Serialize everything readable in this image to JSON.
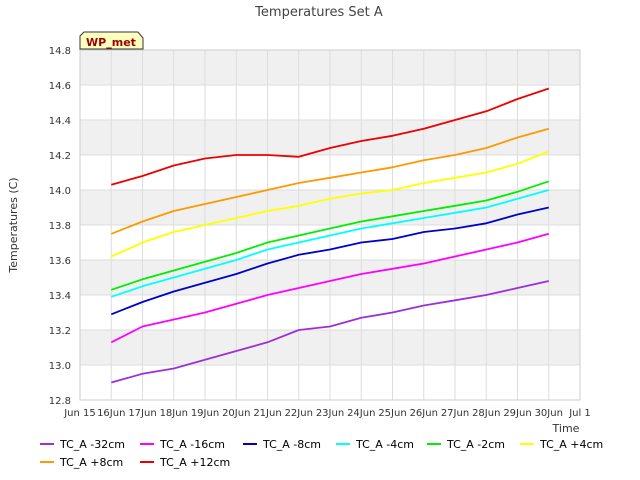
{
  "chart_data": {
    "type": "line",
    "title": "Temperatures Set A",
    "xlabel": "Time",
    "ylabel": "Temperatures (C)",
    "ylim": [
      12.8,
      14.8
    ],
    "yticks": [
      "12.8",
      "13.0",
      "13.2",
      "13.4",
      "13.6",
      "13.8",
      "14.0",
      "14.2",
      "14.4",
      "14.6",
      "14.8"
    ],
    "xlim": [
      "Jun 15",
      "Jul 1"
    ],
    "xticks": [
      "Jun 15",
      "Jun 16",
      "Jun 17",
      "Jun 18",
      "Jun 19",
      "Jun 20",
      "Jun 21",
      "Jun 22",
      "Jun 23",
      "Jun 24",
      "Jun 25",
      "Jun 26",
      "Jun 27",
      "Jun 28",
      "Jun 29",
      "Jun 30",
      "Jul 1"
    ],
    "xtick_labels": [
      "Jun 15",
      "16Jun",
      "17Jun",
      "18Jun",
      "19Jun",
      "20Jun",
      "21Jun",
      "22Jun",
      "23Jun",
      "24Jun",
      "25Jun",
      "26Jun",
      "27Jun",
      "28Jun",
      "29Jun",
      "30Jun",
      "Jul 1"
    ],
    "grid": true,
    "legend_position": "bottom",
    "annotation": "WP_met",
    "x": [
      "Jun 16",
      "Jun 17",
      "Jun 18",
      "Jun 19",
      "Jun 20",
      "Jun 21",
      "Jun 22",
      "Jun 23",
      "Jun 24",
      "Jun 25",
      "Jun 26",
      "Jun 27",
      "Jun 28",
      "Jun 29",
      "Jun 30"
    ],
    "series": [
      {
        "name": "TC_A -32cm",
        "color": "#9b30d9",
        "values": [
          12.9,
          12.95,
          12.98,
          13.03,
          13.08,
          13.13,
          13.2,
          13.22,
          13.27,
          13.3,
          13.34,
          13.37,
          13.4,
          13.44,
          13.48
        ]
      },
      {
        "name": "TC_A -16cm",
        "color": "#ff00ff",
        "values": [
          13.13,
          13.22,
          13.26,
          13.3,
          13.35,
          13.4,
          13.44,
          13.48,
          13.52,
          13.55,
          13.58,
          13.62,
          13.66,
          13.7,
          13.75
        ]
      },
      {
        "name": "TC_A -8cm",
        "color": "#0000cc",
        "values": [
          13.29,
          13.36,
          13.42,
          13.47,
          13.52,
          13.58,
          13.63,
          13.66,
          13.7,
          13.72,
          13.76,
          13.78,
          13.81,
          13.86,
          13.9
        ]
      },
      {
        "name": "TC_A -4cm",
        "color": "#00ffff",
        "values": [
          13.39,
          13.45,
          13.5,
          13.55,
          13.6,
          13.66,
          13.7,
          13.74,
          13.78,
          13.81,
          13.84,
          13.87,
          13.9,
          13.95,
          14.0
        ]
      },
      {
        "name": "TC_A -2cm",
        "color": "#00ee00",
        "values": [
          13.43,
          13.49,
          13.54,
          13.59,
          13.64,
          13.7,
          13.74,
          13.78,
          13.82,
          13.85,
          13.88,
          13.91,
          13.94,
          13.99,
          14.05
        ]
      },
      {
        "name": "TC_A +4cm",
        "color": "#ffff00",
        "values": [
          13.62,
          13.7,
          13.76,
          13.8,
          13.84,
          13.88,
          13.91,
          13.95,
          13.98,
          14.0,
          14.04,
          14.07,
          14.1,
          14.15,
          14.22
        ]
      },
      {
        "name": "TC_A +8cm",
        "color": "#ff9900",
        "values": [
          13.75,
          13.82,
          13.88,
          13.92,
          13.96,
          14.0,
          14.04,
          14.07,
          14.1,
          14.13,
          14.17,
          14.2,
          14.24,
          14.3,
          14.35
        ]
      },
      {
        "name": "TC_A +12cm",
        "color": "#ee0000",
        "values": [
          14.03,
          14.08,
          14.14,
          14.18,
          14.2,
          14.2,
          14.19,
          14.24,
          14.28,
          14.31,
          14.35,
          14.4,
          14.45,
          14.52,
          14.58
        ]
      }
    ]
  }
}
